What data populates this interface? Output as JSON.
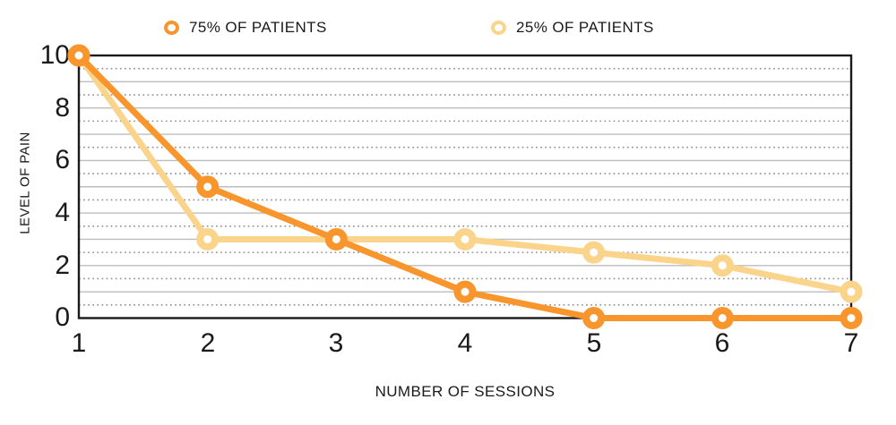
{
  "chart_data": {
    "type": "line",
    "title": "",
    "xlabel": "NUMBER OF SESSIONS",
    "ylabel": "LEVEL OF PAIN",
    "x": [
      1,
      2,
      3,
      4,
      5,
      6,
      7
    ],
    "x_ticks": [
      "1",
      "2",
      "3",
      "4",
      "5",
      "6",
      "7"
    ],
    "y_ticks": [
      "10",
      "8",
      "6",
      "4",
      "2",
      "0"
    ],
    "ylim": [
      0,
      10
    ],
    "grid": {
      "solid_lines_every": 1,
      "dotted_lines_every": 0.5,
      "solid_color": "#bdbdbd",
      "dotted_color": "#90909c"
    },
    "border_color": "#1a1a1a",
    "legend_position": "top",
    "series": [
      {
        "name": "75% OF PATIENTS",
        "color": "#f8962d",
        "values": [
          10,
          5,
          3,
          1,
          0,
          0,
          0
        ]
      },
      {
        "name": "25% OF PATIENTS",
        "color": "#fbd48c",
        "values": [
          10,
          3,
          3,
          3,
          2.5,
          2,
          1
        ]
      }
    ]
  }
}
